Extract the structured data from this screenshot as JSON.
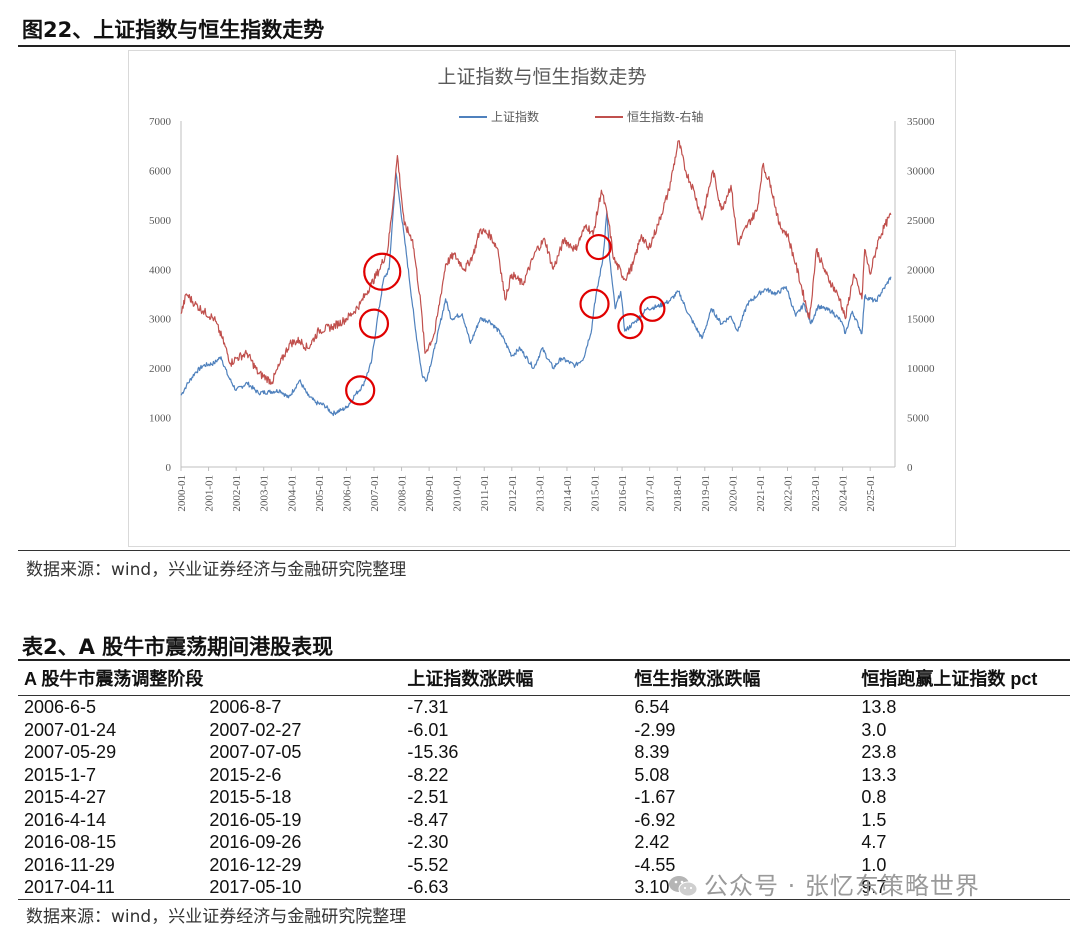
{
  "figure": {
    "title": "图22、上证指数与恒生指数走势",
    "source": "数据来源：wind，兴业证券经济与金融研究院整理"
  },
  "chart_data": {
    "type": "line",
    "title": "上证指数与恒生指数走势",
    "legend_position": "top-center",
    "grid": false,
    "x_tick_labels": [
      "2000-01",
      "2001-01",
      "2002-01",
      "2003-01",
      "2004-01",
      "2005-01",
      "2006-01",
      "2007-01",
      "2008-01",
      "2009-01",
      "2010-01",
      "2011-01",
      "2012-01",
      "2013-01",
      "2014-01",
      "2015-01",
      "2016-01",
      "2017-01",
      "2018-01",
      "2019-01",
      "2020-01",
      "2021-01",
      "2022-01",
      "2023-01",
      "2024-01",
      "2025-01"
    ],
    "y_left": {
      "min": 0,
      "max": 7000,
      "ticks": [
        0,
        1000,
        2000,
        3000,
        4000,
        5000,
        6000,
        7000
      ],
      "tick_labels": [
        "0",
        "1000",
        "2000",
        "3000",
        "4000",
        "5000",
        "6000",
        "7000"
      ]
    },
    "y_right": {
      "min": 0,
      "max": 35000,
      "ticks": [
        0,
        5000,
        10000,
        15000,
        20000,
        25000,
        30000,
        35000
      ],
      "tick_labels": [
        "0",
        "5000",
        "10000",
        "15000",
        "20000",
        "25000",
        "30000",
        "35000"
      ]
    },
    "series": [
      {
        "name": "上证指数",
        "axis": "left",
        "color": "#4f81bd",
        "points": [
          [
            2000.0,
            1450
          ],
          [
            2000.2,
            1650
          ],
          [
            2000.5,
            1900
          ],
          [
            2000.8,
            2050
          ],
          [
            2001.2,
            2100
          ],
          [
            2001.45,
            2230
          ],
          [
            2001.7,
            1850
          ],
          [
            2002.0,
            1550
          ],
          [
            2002.4,
            1700
          ],
          [
            2002.8,
            1500
          ],
          [
            2003.2,
            1520
          ],
          [
            2003.6,
            1550
          ],
          [
            2003.9,
            1400
          ],
          [
            2004.3,
            1750
          ],
          [
            2004.6,
            1450
          ],
          [
            2004.9,
            1300
          ],
          [
            2005.2,
            1250
          ],
          [
            2005.5,
            1080
          ],
          [
            2005.8,
            1150
          ],
          [
            2006.0,
            1200
          ],
          [
            2006.3,
            1450
          ],
          [
            2006.6,
            1650
          ],
          [
            2006.9,
            2100
          ],
          [
            2007.1,
            2900
          ],
          [
            2007.35,
            3800
          ],
          [
            2007.55,
            4000
          ],
          [
            2007.7,
            5200
          ],
          [
            2007.8,
            5950
          ],
          [
            2007.95,
            5300
          ],
          [
            2008.2,
            4200
          ],
          [
            2008.5,
            2800
          ],
          [
            2008.75,
            1850
          ],
          [
            2008.9,
            1750
          ],
          [
            2009.2,
            2400
          ],
          [
            2009.6,
            3400
          ],
          [
            2009.8,
            3000
          ],
          [
            2010.2,
            3100
          ],
          [
            2010.5,
            2500
          ],
          [
            2010.85,
            3000
          ],
          [
            2011.2,
            2950
          ],
          [
            2011.6,
            2700
          ],
          [
            2012.0,
            2250
          ],
          [
            2012.3,
            2400
          ],
          [
            2012.8,
            2000
          ],
          [
            2013.1,
            2400
          ],
          [
            2013.5,
            2000
          ],
          [
            2013.8,
            2200
          ],
          [
            2014.3,
            2050
          ],
          [
            2014.6,
            2200
          ],
          [
            2014.9,
            2800
          ],
          [
            2015.0,
            3300
          ],
          [
            2015.3,
            4200
          ],
          [
            2015.45,
            5170
          ],
          [
            2015.55,
            4200
          ],
          [
            2015.75,
            3200
          ],
          [
            2015.95,
            3550
          ],
          [
            2016.1,
            2750
          ],
          [
            2016.5,
            2950
          ],
          [
            2016.9,
            3200
          ],
          [
            2017.3,
            3250
          ],
          [
            2017.7,
            3350
          ],
          [
            2018.05,
            3550
          ],
          [
            2018.4,
            3100
          ],
          [
            2018.9,
            2600
          ],
          [
            2019.25,
            3200
          ],
          [
            2019.6,
            2900
          ],
          [
            2019.95,
            3050
          ],
          [
            2020.2,
            2750
          ],
          [
            2020.55,
            3300
          ],
          [
            2020.95,
            3500
          ],
          [
            2021.2,
            3600
          ],
          [
            2021.6,
            3500
          ],
          [
            2021.95,
            3650
          ],
          [
            2022.3,
            3050
          ],
          [
            2022.6,
            3300
          ],
          [
            2022.85,
            2900
          ],
          [
            2023.1,
            3250
          ],
          [
            2023.6,
            3150
          ],
          [
            2023.95,
            2950
          ],
          [
            2024.1,
            2700
          ],
          [
            2024.35,
            3150
          ],
          [
            2024.7,
            2700
          ],
          [
            2024.8,
            3450
          ],
          [
            2025.2,
            3350
          ],
          [
            2025.6,
            3700
          ],
          [
            2025.75,
            3850
          ]
        ]
      },
      {
        "name": "恒生指数-右轴",
        "axis": "right",
        "color": "#c0504d",
        "points": [
          [
            2000.0,
            15500
          ],
          [
            2000.2,
            17500
          ],
          [
            2000.5,
            16500
          ],
          [
            2000.8,
            15800
          ],
          [
            2001.2,
            15000
          ],
          [
            2001.5,
            13000
          ],
          [
            2001.8,
            10500
          ],
          [
            2002.0,
            11000
          ],
          [
            2002.4,
            11500
          ],
          [
            2002.8,
            9500
          ],
          [
            2003.1,
            9000
          ],
          [
            2003.3,
            8600
          ],
          [
            2003.6,
            10500
          ],
          [
            2003.95,
            12500
          ],
          [
            2004.3,
            12800
          ],
          [
            2004.6,
            12000
          ],
          [
            2005.0,
            13800
          ],
          [
            2005.5,
            14200
          ],
          [
            2005.9,
            14800
          ],
          [
            2006.2,
            15500
          ],
          [
            2006.5,
            16500
          ],
          [
            2006.9,
            18500
          ],
          [
            2007.2,
            20000
          ],
          [
            2007.5,
            22000
          ],
          [
            2007.7,
            27000
          ],
          [
            2007.85,
            31500
          ],
          [
            2008.1,
            24500
          ],
          [
            2008.4,
            23000
          ],
          [
            2008.7,
            16500
          ],
          [
            2008.85,
            11500
          ],
          [
            2009.2,
            13500
          ],
          [
            2009.6,
            20500
          ],
          [
            2009.9,
            21500
          ],
          [
            2010.3,
            20000
          ],
          [
            2010.6,
            21500
          ],
          [
            2010.85,
            24000
          ],
          [
            2011.2,
            23500
          ],
          [
            2011.5,
            22000
          ],
          [
            2011.75,
            17000
          ],
          [
            2012.0,
            19500
          ],
          [
            2012.4,
            18500
          ],
          [
            2012.9,
            22000
          ],
          [
            2013.2,
            23000
          ],
          [
            2013.5,
            20000
          ],
          [
            2013.9,
            23000
          ],
          [
            2014.3,
            22000
          ],
          [
            2014.7,
            24500
          ],
          [
            2014.95,
            23500
          ],
          [
            2015.25,
            28000
          ],
          [
            2015.5,
            25000
          ],
          [
            2015.7,
            21000
          ],
          [
            2016.1,
            19000
          ],
          [
            2016.4,
            20500
          ],
          [
            2016.7,
            23500
          ],
          [
            2016.95,
            22000
          ],
          [
            2017.3,
            24500
          ],
          [
            2017.7,
            28000
          ],
          [
            2018.05,
            33000
          ],
          [
            2018.3,
            30000
          ],
          [
            2018.6,
            28000
          ],
          [
            2018.9,
            25000
          ],
          [
            2019.3,
            30000
          ],
          [
            2019.6,
            26000
          ],
          [
            2019.95,
            28500
          ],
          [
            2020.2,
            22500
          ],
          [
            2020.55,
            24500
          ],
          [
            2020.9,
            26000
          ],
          [
            2021.1,
            30500
          ],
          [
            2021.4,
            28500
          ],
          [
            2021.7,
            24500
          ],
          [
            2022.0,
            23500
          ],
          [
            2022.3,
            20500
          ],
          [
            2022.8,
            15000
          ],
          [
            2023.05,
            22000
          ],
          [
            2023.4,
            19500
          ],
          [
            2023.9,
            17000
          ],
          [
            2024.1,
            15000
          ],
          [
            2024.4,
            19500
          ],
          [
            2024.7,
            17000
          ],
          [
            2024.8,
            22000
          ],
          [
            2025.0,
            19500
          ],
          [
            2025.3,
            23000
          ],
          [
            2025.55,
            24500
          ],
          [
            2025.75,
            25500
          ]
        ]
      }
    ],
    "circle_markers": [
      {
        "x": 2006.5,
        "y": 1550,
        "r": 14
      },
      {
        "x": 2007.0,
        "y": 2900,
        "r": 14
      },
      {
        "x": 2007.3,
        "y": 3950,
        "r": 18
      },
      {
        "x": 2015.0,
        "y": 3300,
        "r": 14
      },
      {
        "x": 2015.15,
        "y": 4450,
        "r": 12
      },
      {
        "x": 2016.3,
        "y": 2850,
        "r": 12
      },
      {
        "x": 2017.1,
        "y": 3200,
        "r": 12
      }
    ]
  },
  "table": {
    "title": "表2、A 股牛市震荡期间港股表现",
    "headers": [
      "A 股牛市震荡调整阶段",
      "",
      "上证指数涨跌幅",
      "恒生指数涨跌幅",
      "恒指跑赢上证指数  pct"
    ],
    "rows": [
      [
        "2006-6-5",
        "2006-8-7",
        "-7.31",
        "6.54",
        "13.8"
      ],
      [
        "2007-01-24",
        "2007-02-27",
        "-6.01",
        "-2.99",
        "3.0"
      ],
      [
        "2007-05-29",
        "2007-07-05",
        "-15.36",
        "8.39",
        "23.8"
      ],
      [
        "2015-1-7",
        "2015-2-6",
        "-8.22",
        "5.08",
        "13.3"
      ],
      [
        "2015-4-27",
        "2015-5-18",
        "-2.51",
        "-1.67",
        "0.8"
      ],
      [
        "2016-4-14",
        "2016-05-19",
        "-8.47",
        "-6.92",
        "1.5"
      ],
      [
        "2016-08-15",
        "2016-09-26",
        "-2.30",
        "2.42",
        "4.7"
      ],
      [
        "2016-11-29",
        "2016-12-29",
        "-5.52",
        "-4.55",
        "1.0"
      ],
      [
        "2017-04-11",
        "2017-05-10",
        "-6.63",
        "3.10",
        "9.7"
      ]
    ],
    "source": "数据来源：wind，兴业证券经济与金融研究院整理"
  },
  "watermark": {
    "text": "公众号 · 张忆东策略世界",
    "icon": "wechat-icon"
  }
}
